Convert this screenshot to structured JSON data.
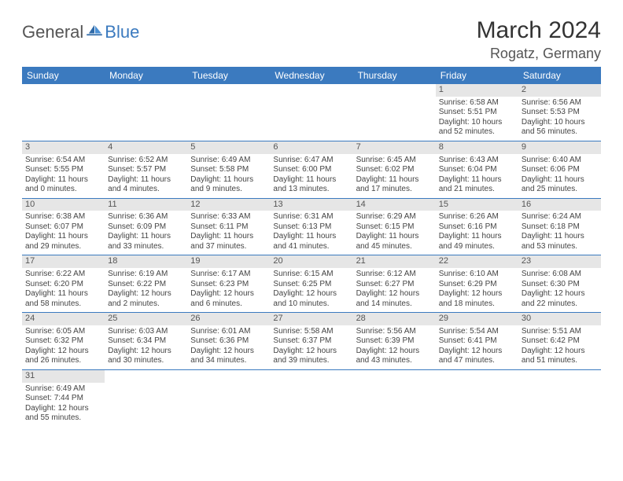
{
  "brand": {
    "part1": "General",
    "part2": "Blue"
  },
  "title": "March 2024",
  "location": "Rogatz, Germany",
  "colors": {
    "accent": "#3b7abf",
    "dayHeaderBg": "#e6e6e6",
    "text": "#444"
  },
  "weekdays": [
    "Sunday",
    "Monday",
    "Tuesday",
    "Wednesday",
    "Thursday",
    "Friday",
    "Saturday"
  ],
  "weeks": [
    [
      null,
      null,
      null,
      null,
      null,
      {
        "n": "1",
        "sr": "Sunrise: 6:58 AM",
        "ss": "Sunset: 5:51 PM",
        "d1": "Daylight: 10 hours",
        "d2": "and 52 minutes."
      },
      {
        "n": "2",
        "sr": "Sunrise: 6:56 AM",
        "ss": "Sunset: 5:53 PM",
        "d1": "Daylight: 10 hours",
        "d2": "and 56 minutes."
      }
    ],
    [
      {
        "n": "3",
        "sr": "Sunrise: 6:54 AM",
        "ss": "Sunset: 5:55 PM",
        "d1": "Daylight: 11 hours",
        "d2": "and 0 minutes."
      },
      {
        "n": "4",
        "sr": "Sunrise: 6:52 AM",
        "ss": "Sunset: 5:57 PM",
        "d1": "Daylight: 11 hours",
        "d2": "and 4 minutes."
      },
      {
        "n": "5",
        "sr": "Sunrise: 6:49 AM",
        "ss": "Sunset: 5:58 PM",
        "d1": "Daylight: 11 hours",
        "d2": "and 9 minutes."
      },
      {
        "n": "6",
        "sr": "Sunrise: 6:47 AM",
        "ss": "Sunset: 6:00 PM",
        "d1": "Daylight: 11 hours",
        "d2": "and 13 minutes."
      },
      {
        "n": "7",
        "sr": "Sunrise: 6:45 AM",
        "ss": "Sunset: 6:02 PM",
        "d1": "Daylight: 11 hours",
        "d2": "and 17 minutes."
      },
      {
        "n": "8",
        "sr": "Sunrise: 6:43 AM",
        "ss": "Sunset: 6:04 PM",
        "d1": "Daylight: 11 hours",
        "d2": "and 21 minutes."
      },
      {
        "n": "9",
        "sr": "Sunrise: 6:40 AM",
        "ss": "Sunset: 6:06 PM",
        "d1": "Daylight: 11 hours",
        "d2": "and 25 minutes."
      }
    ],
    [
      {
        "n": "10",
        "sr": "Sunrise: 6:38 AM",
        "ss": "Sunset: 6:07 PM",
        "d1": "Daylight: 11 hours",
        "d2": "and 29 minutes."
      },
      {
        "n": "11",
        "sr": "Sunrise: 6:36 AM",
        "ss": "Sunset: 6:09 PM",
        "d1": "Daylight: 11 hours",
        "d2": "and 33 minutes."
      },
      {
        "n": "12",
        "sr": "Sunrise: 6:33 AM",
        "ss": "Sunset: 6:11 PM",
        "d1": "Daylight: 11 hours",
        "d2": "and 37 minutes."
      },
      {
        "n": "13",
        "sr": "Sunrise: 6:31 AM",
        "ss": "Sunset: 6:13 PM",
        "d1": "Daylight: 11 hours",
        "d2": "and 41 minutes."
      },
      {
        "n": "14",
        "sr": "Sunrise: 6:29 AM",
        "ss": "Sunset: 6:15 PM",
        "d1": "Daylight: 11 hours",
        "d2": "and 45 minutes."
      },
      {
        "n": "15",
        "sr": "Sunrise: 6:26 AM",
        "ss": "Sunset: 6:16 PM",
        "d1": "Daylight: 11 hours",
        "d2": "and 49 minutes."
      },
      {
        "n": "16",
        "sr": "Sunrise: 6:24 AM",
        "ss": "Sunset: 6:18 PM",
        "d1": "Daylight: 11 hours",
        "d2": "and 53 minutes."
      }
    ],
    [
      {
        "n": "17",
        "sr": "Sunrise: 6:22 AM",
        "ss": "Sunset: 6:20 PM",
        "d1": "Daylight: 11 hours",
        "d2": "and 58 minutes."
      },
      {
        "n": "18",
        "sr": "Sunrise: 6:19 AM",
        "ss": "Sunset: 6:22 PM",
        "d1": "Daylight: 12 hours",
        "d2": "and 2 minutes."
      },
      {
        "n": "19",
        "sr": "Sunrise: 6:17 AM",
        "ss": "Sunset: 6:23 PM",
        "d1": "Daylight: 12 hours",
        "d2": "and 6 minutes."
      },
      {
        "n": "20",
        "sr": "Sunrise: 6:15 AM",
        "ss": "Sunset: 6:25 PM",
        "d1": "Daylight: 12 hours",
        "d2": "and 10 minutes."
      },
      {
        "n": "21",
        "sr": "Sunrise: 6:12 AM",
        "ss": "Sunset: 6:27 PM",
        "d1": "Daylight: 12 hours",
        "d2": "and 14 minutes."
      },
      {
        "n": "22",
        "sr": "Sunrise: 6:10 AM",
        "ss": "Sunset: 6:29 PM",
        "d1": "Daylight: 12 hours",
        "d2": "and 18 minutes."
      },
      {
        "n": "23",
        "sr": "Sunrise: 6:08 AM",
        "ss": "Sunset: 6:30 PM",
        "d1": "Daylight: 12 hours",
        "d2": "and 22 minutes."
      }
    ],
    [
      {
        "n": "24",
        "sr": "Sunrise: 6:05 AM",
        "ss": "Sunset: 6:32 PM",
        "d1": "Daylight: 12 hours",
        "d2": "and 26 minutes."
      },
      {
        "n": "25",
        "sr": "Sunrise: 6:03 AM",
        "ss": "Sunset: 6:34 PM",
        "d1": "Daylight: 12 hours",
        "d2": "and 30 minutes."
      },
      {
        "n": "26",
        "sr": "Sunrise: 6:01 AM",
        "ss": "Sunset: 6:36 PM",
        "d1": "Daylight: 12 hours",
        "d2": "and 34 minutes."
      },
      {
        "n": "27",
        "sr": "Sunrise: 5:58 AM",
        "ss": "Sunset: 6:37 PM",
        "d1": "Daylight: 12 hours",
        "d2": "and 39 minutes."
      },
      {
        "n": "28",
        "sr": "Sunrise: 5:56 AM",
        "ss": "Sunset: 6:39 PM",
        "d1": "Daylight: 12 hours",
        "d2": "and 43 minutes."
      },
      {
        "n": "29",
        "sr": "Sunrise: 5:54 AM",
        "ss": "Sunset: 6:41 PM",
        "d1": "Daylight: 12 hours",
        "d2": "and 47 minutes."
      },
      {
        "n": "30",
        "sr": "Sunrise: 5:51 AM",
        "ss": "Sunset: 6:42 PM",
        "d1": "Daylight: 12 hours",
        "d2": "and 51 minutes."
      }
    ],
    [
      {
        "n": "31",
        "sr": "Sunrise: 6:49 AM",
        "ss": "Sunset: 7:44 PM",
        "d1": "Daylight: 12 hours",
        "d2": "and 55 minutes."
      },
      null,
      null,
      null,
      null,
      null,
      null
    ]
  ]
}
